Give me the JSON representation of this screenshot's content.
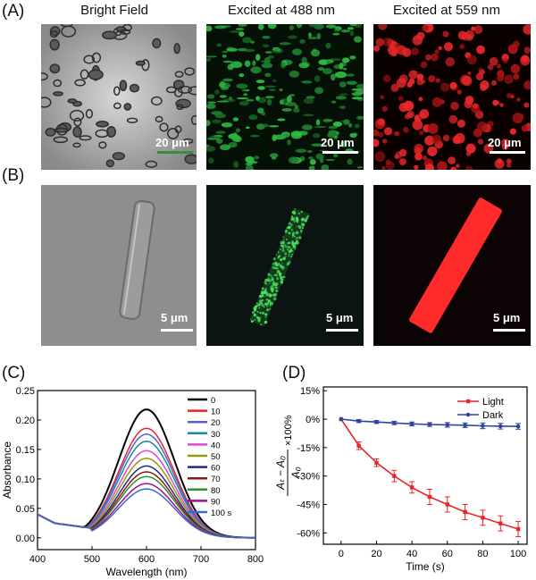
{
  "panels": {
    "A": "(A)",
    "B": "(B)",
    "C": "(C)",
    "D": "(D)"
  },
  "columns": [
    "Bright Field",
    "Excited at 488 nm",
    "Excited at 559 nm"
  ],
  "scalebars": {
    "row_a": "20 μm",
    "row_b": "5 μm"
  },
  "colors": {
    "bright_field": "#9a9a9a",
    "green_emission": "#36c24a",
    "red_emission": "#ff2020",
    "light_series": "#e8262a",
    "dark_series": "#2d44a0"
  },
  "chart_data": [
    {
      "type": "line",
      "panel": "(C)",
      "xlabel": "Wavelength (nm)",
      "ylabel": "Absorbance",
      "xlim": [
        400,
        800
      ],
      "ylim": [
        -0.02,
        0.25
      ],
      "xticks": [
        400,
        500,
        600,
        700,
        800
      ],
      "yticks": [
        0.0,
        0.05,
        0.1,
        0.15,
        0.2,
        0.25
      ],
      "ytick_labels": [
        "0.00",
        "0.05",
        "0.10",
        "0.15",
        "0.20",
        "0.25"
      ],
      "legend_placement": "top-right",
      "peak_wavelength": 600,
      "baseline": 0.0,
      "min_value": 0.025,
      "series": [
        {
          "name": "0",
          "color": "#000000",
          "peak": 0.218
        },
        {
          "name": "10",
          "color": "#e8262a",
          "peak": 0.186
        },
        {
          "name": "20",
          "color": "#5a5fd6",
          "peak": 0.176
        },
        {
          "name": "30",
          "color": "#1a8a9a",
          "peak": 0.164
        },
        {
          "name": "40",
          "color": "#d94ad0",
          "peak": 0.148
        },
        {
          "name": "50",
          "color": "#9a9a10",
          "peak": 0.135
        },
        {
          "name": "60",
          "color": "#1c2a8a",
          "peak": 0.122
        },
        {
          "name": "70",
          "color": "#8a1a1a",
          "peak": 0.112
        },
        {
          "name": "80",
          "color": "#2f8f2f",
          "peak": 0.104
        },
        {
          "name": "90",
          "color": "#a01090",
          "peak": 0.092
        },
        {
          "name": "100 s",
          "color": "#3a6ad0",
          "peak": 0.083
        }
      ]
    },
    {
      "type": "line",
      "panel": "(D)",
      "xlabel": "Time (s)",
      "ylabel_formula": "(At − A0)/A0 × 100%",
      "xlim": [
        -10,
        105
      ],
      "ylim": [
        -66,
        17
      ],
      "xticks": [
        0,
        20,
        40,
        60,
        80,
        100
      ],
      "yticks": [
        15,
        0,
        -15,
        -30,
        -45,
        -60
      ],
      "ytick_labels": [
        "15%",
        "0%",
        "-15%",
        "-30%",
        "-45%",
        "-60%"
      ],
      "legend_placement": "top-right",
      "x": [
        0,
        10,
        20,
        30,
        40,
        50,
        60,
        70,
        80,
        90,
        100
      ],
      "series": [
        {
          "name": "Light",
          "color": "#e8262a",
          "marker": "square",
          "values": [
            0,
            -14,
            -23,
            -30,
            -36,
            -41,
            -45,
            -49,
            -52,
            -55,
            -58
          ],
          "error": [
            0,
            2,
            2,
            3,
            3,
            4,
            4,
            4,
            4,
            4,
            4
          ]
        },
        {
          "name": "Dark",
          "color": "#2d44a0",
          "marker": "circle",
          "values": [
            0,
            -1,
            -1.5,
            -2,
            -2.5,
            -2.8,
            -3,
            -3.2,
            -3.5,
            -3.7,
            -3.8
          ],
          "error": [
            0,
            0.8,
            0.8,
            0.9,
            1,
            1,
            1.2,
            1.2,
            1.5,
            1.5,
            1.5
          ]
        }
      ]
    }
  ]
}
